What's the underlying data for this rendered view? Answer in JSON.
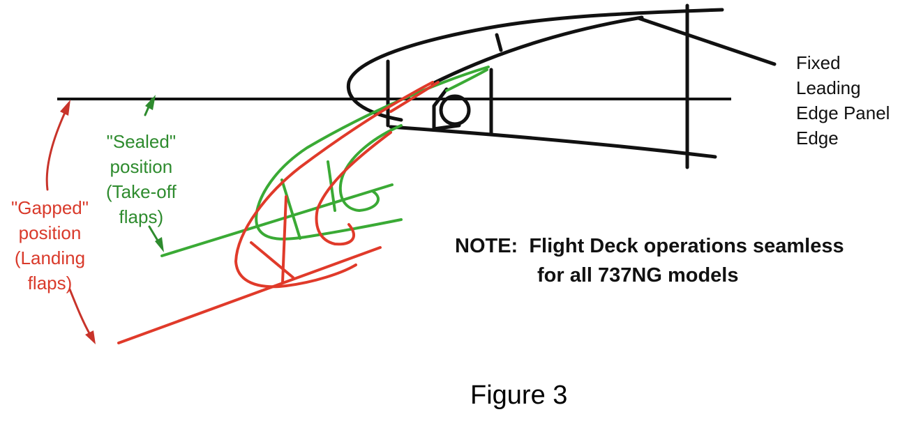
{
  "colors": {
    "structure": "#111111",
    "sealed": "#3aaa35",
    "gapped": "#e03a2a"
  },
  "labels": {
    "fixed_panel": [
      "Fixed",
      "Leading",
      "Edge Panel",
      "Edge"
    ],
    "sealed": [
      "\"Sealed\"",
      "position",
      "(Take-off",
      "flaps)"
    ],
    "gapped": [
      "\"Gapped\"",
      "position",
      "(Landing",
      "flaps)"
    ]
  },
  "note": {
    "line1": "NOTE:  Flight Deck operations seamless",
    "line2": "for all 737NG models"
  },
  "caption": "Figure 3"
}
